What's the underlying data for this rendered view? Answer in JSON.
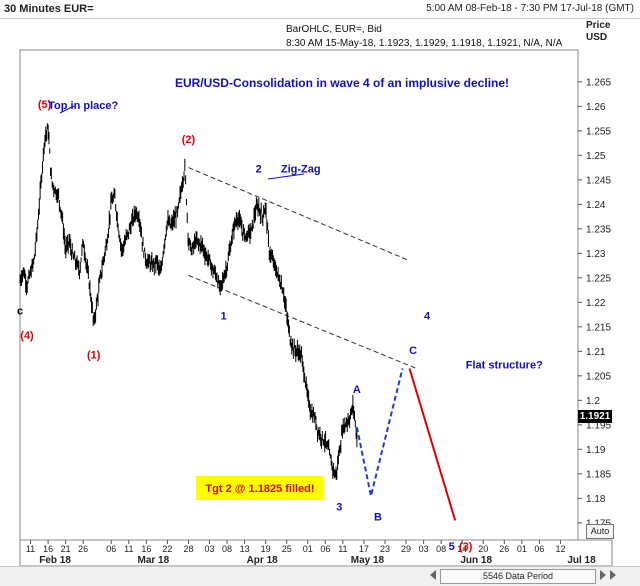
{
  "header": {
    "title": "30 Minutes EUR=",
    "range": "5:00 AM 08-Feb-18 - 7:30 PM 17-Jul-18 (GMT)"
  },
  "info": {
    "line1": "BarOHLC, EUR=, Bid",
    "line2": "8:30 AM 15-May-18, 1.1923, 1.1929, 1.1918, 1.1921, N/A, N/A"
  },
  "axis": {
    "price_label": "Price",
    "unit_label": "USD",
    "last_price": "1.1921"
  },
  "footer": {
    "data_period": "5546 Data Period",
    "auto_label": "Auto"
  },
  "colors": {
    "bars": "#000000",
    "wave_red": "#e00000",
    "wave_blue": "#1010c8",
    "target_box": "#ffff00",
    "projection_blue": "#1a3fd6",
    "projection_red": "#e00000"
  },
  "chart_data": {
    "type": "ohlc",
    "title": "EUR/USD-Consolidation in wave 4 of an implusive decline!",
    "ylim": [
      1.1715,
      1.2715
    ],
    "y_ticks": [
      1.175,
      1.18,
      1.185,
      1.19,
      1.195,
      1.2,
      1.205,
      1.21,
      1.215,
      1.22,
      1.225,
      1.23,
      1.235,
      1.24,
      1.245,
      1.25,
      1.255,
      1.26,
      1.265
    ],
    "y_tick_labels": [
      "1.175",
      "1.18",
      "1.185",
      "1.19",
      "1.195",
      "1.2",
      "1.205",
      "1.21",
      "1.215",
      "1.22",
      "1.225",
      "1.23",
      "1.235",
      "1.24",
      "1.245",
      "1.25",
      "1.255",
      "1.26",
      "1.265"
    ],
    "x_day_ticks": [
      {
        "date": "2018-02-11",
        "label": "11"
      },
      {
        "date": "2018-02-16",
        "label": "16"
      },
      {
        "date": "2018-02-21",
        "label": "21"
      },
      {
        "date": "2018-02-26",
        "label": "26"
      },
      {
        "date": "2018-03-06",
        "label": "06"
      },
      {
        "date": "2018-03-11",
        "label": "11"
      },
      {
        "date": "2018-03-16",
        "label": "16"
      },
      {
        "date": "2018-03-22",
        "label": "22"
      },
      {
        "date": "2018-03-28",
        "label": "28"
      },
      {
        "date": "2018-04-03",
        "label": "03"
      },
      {
        "date": "2018-04-08",
        "label": "08"
      },
      {
        "date": "2018-04-13",
        "label": "13"
      },
      {
        "date": "2018-04-19",
        "label": "19"
      },
      {
        "date": "2018-04-25",
        "label": "25"
      },
      {
        "date": "2018-05-01",
        "label": "01"
      },
      {
        "date": "2018-05-06",
        "label": "06"
      },
      {
        "date": "2018-05-11",
        "label": "11"
      },
      {
        "date": "2018-05-17",
        "label": "17"
      },
      {
        "date": "2018-05-23",
        "label": "23"
      },
      {
        "date": "2018-05-29",
        "label": "29"
      },
      {
        "date": "2018-06-03",
        "label": "03"
      },
      {
        "date": "2018-06-08",
        "label": "08"
      },
      {
        "date": "2018-06-14",
        "label": "14"
      },
      {
        "date": "2018-06-20",
        "label": "20"
      },
      {
        "date": "2018-06-26",
        "label": "26"
      },
      {
        "date": "2018-07-01",
        "label": "01"
      },
      {
        "date": "2018-07-06",
        "label": "06"
      },
      {
        "date": "2018-07-12",
        "label": "12"
      }
    ],
    "x_month_labels": [
      {
        "date": "2018-02-18",
        "label": "Feb 18"
      },
      {
        "date": "2018-03-18",
        "label": "Mar 18"
      },
      {
        "date": "2018-04-18",
        "label": "Apr 18"
      },
      {
        "date": "2018-05-18",
        "label": "May 18"
      },
      {
        "date": "2018-06-18",
        "label": "Jun 18"
      },
      {
        "date": "2018-07-18",
        "label": "Jul 18"
      }
    ],
    "price_path": [
      {
        "date": "2018-02-08",
        "price": 1.2245
      },
      {
        "date": "2018-02-09",
        "price": 1.2265
      },
      {
        "date": "2018-02-10",
        "price": 1.2235
      },
      {
        "date": "2018-02-12",
        "price": 1.2285
      },
      {
        "date": "2018-02-13",
        "price": 1.2355
      },
      {
        "date": "2018-02-14",
        "price": 1.2445
      },
      {
        "date": "2018-02-15",
        "price": 1.2535
      },
      {
        "date": "2018-02-16",
        "price": 1.2555
      },
      {
        "date": "2018-02-17",
        "price": 1.2445
      },
      {
        "date": "2018-02-19",
        "price": 1.2415
      },
      {
        "date": "2018-02-20",
        "price": 1.2375
      },
      {
        "date": "2018-02-21",
        "price": 1.2305
      },
      {
        "date": "2018-02-22",
        "price": 1.2325
      },
      {
        "date": "2018-02-23",
        "price": 1.2295
      },
      {
        "date": "2018-02-25",
        "price": 1.2265
      },
      {
        "date": "2018-02-26",
        "price": 1.2325
      },
      {
        "date": "2018-02-27",
        "price": 1.2275
      },
      {
        "date": "2018-02-28",
        "price": 1.2225
      },
      {
        "date": "2018-03-01",
        "price": 1.2155
      },
      {
        "date": "2018-03-02",
        "price": 1.2205
      },
      {
        "date": "2018-03-03",
        "price": 1.2255
      },
      {
        "date": "2018-03-05",
        "price": 1.2335
      },
      {
        "date": "2018-03-06",
        "price": 1.2405
      },
      {
        "date": "2018-03-07",
        "price": 1.2415
      },
      {
        "date": "2018-03-08",
        "price": 1.2355
      },
      {
        "date": "2018-03-09",
        "price": 1.2305
      },
      {
        "date": "2018-03-11",
        "price": 1.2345
      },
      {
        "date": "2018-03-12",
        "price": 1.2365
      },
      {
        "date": "2018-03-13",
        "price": 1.2385
      },
      {
        "date": "2018-03-14",
        "price": 1.2375
      },
      {
        "date": "2018-03-15",
        "price": 1.2315
      },
      {
        "date": "2018-03-16",
        "price": 1.2285
      },
      {
        "date": "2018-03-18",
        "price": 1.2275
      },
      {
        "date": "2018-03-19",
        "price": 1.2285
      },
      {
        "date": "2018-03-20",
        "price": 1.2255
      },
      {
        "date": "2018-03-21",
        "price": 1.2315
      },
      {
        "date": "2018-03-22",
        "price": 1.2365
      },
      {
        "date": "2018-03-23",
        "price": 1.2355
      },
      {
        "date": "2018-03-25",
        "price": 1.2385
      },
      {
        "date": "2018-03-26",
        "price": 1.2435
      },
      {
        "date": "2018-03-27",
        "price": 1.2475
      },
      {
        "date": "2018-03-28",
        "price": 1.2325
      },
      {
        "date": "2018-03-29",
        "price": 1.2305
      },
      {
        "date": "2018-03-30",
        "price": 1.2325
      },
      {
        "date": "2018-04-01",
        "price": 1.2315
      },
      {
        "date": "2018-04-02",
        "price": 1.2295
      },
      {
        "date": "2018-04-03",
        "price": 1.2285
      },
      {
        "date": "2018-04-04",
        "price": 1.2265
      },
      {
        "date": "2018-04-05",
        "price": 1.2255
      },
      {
        "date": "2018-04-06",
        "price": 1.2225
      },
      {
        "date": "2018-04-08",
        "price": 1.2275
      },
      {
        "date": "2018-04-09",
        "price": 1.2315
      },
      {
        "date": "2018-04-10",
        "price": 1.2355
      },
      {
        "date": "2018-04-11",
        "price": 1.2375
      },
      {
        "date": "2018-04-12",
        "price": 1.2355
      },
      {
        "date": "2018-04-13",
        "price": 1.2335
      },
      {
        "date": "2018-04-15",
        "price": 1.2345
      },
      {
        "date": "2018-04-16",
        "price": 1.2385
      },
      {
        "date": "2018-04-17",
        "price": 1.2395
      },
      {
        "date": "2018-04-18",
        "price": 1.2375
      },
      {
        "date": "2018-04-19",
        "price": 1.2395
      },
      {
        "date": "2018-04-20",
        "price": 1.2305
      },
      {
        "date": "2018-04-22",
        "price": 1.2265
      },
      {
        "date": "2018-04-23",
        "price": 1.2245
      },
      {
        "date": "2018-04-24",
        "price": 1.2225
      },
      {
        "date": "2018-04-25",
        "price": 1.2175
      },
      {
        "date": "2018-04-26",
        "price": 1.2125
      },
      {
        "date": "2018-04-27",
        "price": 1.2105
      },
      {
        "date": "2018-04-29",
        "price": 1.2095
      },
      {
        "date": "2018-04-30",
        "price": 1.2055
      },
      {
        "date": "2018-05-01",
        "price": 1.2005
      },
      {
        "date": "2018-05-02",
        "price": 1.1975
      },
      {
        "date": "2018-05-03",
        "price": 1.1965
      },
      {
        "date": "2018-05-04",
        "price": 1.1935
      },
      {
        "date": "2018-05-06",
        "price": 1.1915
      },
      {
        "date": "2018-05-07",
        "price": 1.1895
      },
      {
        "date": "2018-05-08",
        "price": 1.1865
      },
      {
        "date": "2018-05-09",
        "price": 1.1845
      },
      {
        "date": "2018-05-10",
        "price": 1.1895
      },
      {
        "date": "2018-05-11",
        "price": 1.1945
      },
      {
        "date": "2018-05-13",
        "price": 1.1965
      },
      {
        "date": "2018-05-14",
        "price": 1.199
      },
      {
        "date": "2018-05-15",
        "price": 1.1921
      }
    ],
    "wave_labels": [
      {
        "text": "(5)",
        "color": "red",
        "date": "2018-02-15",
        "price": 1.2597
      },
      {
        "text": "Top in place?",
        "color": "blue",
        "date": "2018-02-26",
        "price": 1.2595
      },
      {
        "text": "(4)",
        "color": "red",
        "date": "2018-02-10",
        "price": 1.2125
      },
      {
        "text": "(1)",
        "color": "red",
        "date": "2018-03-01",
        "price": 1.2085
      },
      {
        "text": "(2)",
        "color": "red",
        "date": "2018-03-28",
        "price": 1.2525
      },
      {
        "text": "2",
        "color": "blue",
        "date": "2018-04-17",
        "price": 1.2465
      },
      {
        "text": "Zig-Zag",
        "color": "blue",
        "date": "2018-04-29",
        "price": 1.2465
      },
      {
        "text": "1",
        "color": "blue",
        "date": "2018-04-07",
        "price": 1.2165
      },
      {
        "text": "4",
        "color": "blue",
        "date": "2018-06-04",
        "price": 1.2165
      },
      {
        "text": "C",
        "color": "blue",
        "date": "2018-05-31",
        "price": 1.2095
      },
      {
        "text": "Flat structure?",
        "color": "blue",
        "date": "2018-06-26",
        "price": 1.2065
      },
      {
        "text": "A",
        "color": "blue",
        "date": "2018-05-15",
        "price": 1.2015
      },
      {
        "text": "B",
        "color": "blue",
        "date": "2018-05-21",
        "price": 1.1755
      },
      {
        "text": "3",
        "color": "blue",
        "date": "2018-05-10",
        "price": 1.1775
      },
      {
        "text": "5",
        "color": "blue",
        "date": "2018-06-11",
        "price": 1.1695
      },
      {
        "text": "(3)",
        "color": "red",
        "date": "2018-06-15",
        "price": 1.1695
      },
      {
        "text": "c",
        "color": "black",
        "date": "2018-02-08",
        "price": 1.2175
      }
    ],
    "target_label": "Tgt 2 @ 1.1825 filled!",
    "channel_lines": [
      {
        "from": {
          "date": "2018-03-28",
          "price": 1.2475
        },
        "to": {
          "date": "2018-05-30",
          "price": 1.2285
        }
      },
      {
        "from": {
          "date": "2018-03-28",
          "price": 1.2255
        },
        "to": {
          "date": "2018-06-01",
          "price": 1.2065
        }
      }
    ],
    "projection_blue": [
      {
        "date": "2018-05-15",
        "price": 1.1945
      },
      {
        "date": "2018-05-19",
        "price": 1.1805
      },
      {
        "date": "2018-05-28",
        "price": 1.2065
      }
    ],
    "projection_red": [
      {
        "date": "2018-05-30",
        "price": 1.2065
      },
      {
        "date": "2018-06-12",
        "price": 1.1755
      }
    ]
  }
}
